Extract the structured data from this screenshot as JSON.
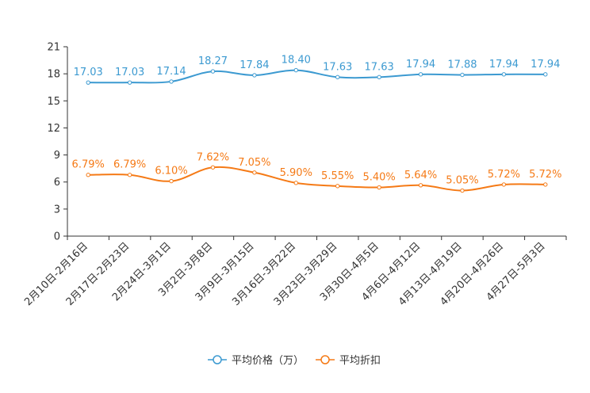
{
  "chart_data": {
    "type": "line",
    "categories": [
      "2月10日-2月16日",
      "2月17日-2月23日",
      "2月24日-3月1日",
      "3月2日-3月8日",
      "3月9日-3月15日",
      "3月16日-3月22日",
      "3月23日-3月29日",
      "3月30日-4月5日",
      "4月6日-4月12日",
      "4月13日-4月19日",
      "4月20日-4月26日",
      "4月27日-5月3日"
    ],
    "ylim": [
      0,
      21
    ],
    "yticks": [
      0,
      3,
      6,
      9,
      12,
      15,
      18,
      21
    ],
    "series": [
      {
        "name": "平均价格（万）",
        "color": "#3c9ad1",
        "values": [
          17.03,
          17.03,
          17.14,
          18.27,
          17.84,
          18.4,
          17.63,
          17.63,
          17.94,
          17.88,
          17.94,
          17.94
        ],
        "labels": [
          "17.03",
          "17.03",
          "17.14",
          "18.27",
          "17.84",
          "18.40",
          "17.63",
          "17.63",
          "17.94",
          "17.88",
          "17.94",
          "17.94"
        ]
      },
      {
        "name": "平均折扣",
        "color": "#f57a16",
        "values": [
          6.79,
          6.79,
          6.1,
          7.62,
          7.05,
          5.9,
          5.55,
          5.4,
          5.64,
          5.05,
          5.72,
          5.72
        ],
        "labels": [
          "6.79%",
          "6.79%",
          "6.10%",
          "7.62%",
          "7.05%",
          "5.90%",
          "5.55%",
          "5.40%",
          "5.64%",
          "5.05%",
          "5.72%",
          "5.72%"
        ]
      }
    ],
    "legend_position": "bottom-center",
    "grid": false
  }
}
